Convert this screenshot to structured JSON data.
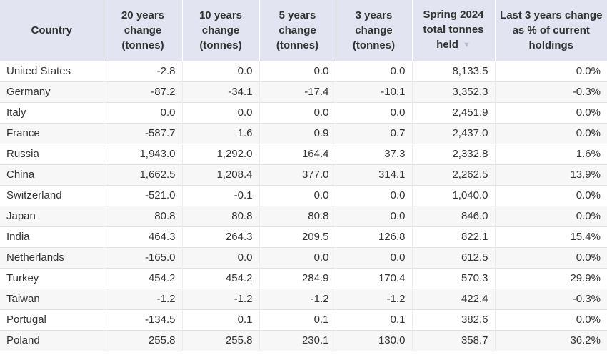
{
  "chart_data": {
    "type": "table",
    "columns": [
      {
        "key": "country",
        "label": "Country"
      },
      {
        "key": "change-20y",
        "label": "20 years change (tonnes)"
      },
      {
        "key": "change-10y",
        "label": "10 years change (tonnes)"
      },
      {
        "key": "change-5y",
        "label": "5 years change (tonnes)"
      },
      {
        "key": "change-3y",
        "label": "3 years change (tonnes)"
      },
      {
        "key": "total-held",
        "label": "Spring 2024 total tonnes held",
        "sorted": "desc"
      },
      {
        "key": "pct-change-3y",
        "label": "Last 3 years change as % of current holdings"
      }
    ],
    "rows": [
      [
        "United States",
        "-2.8",
        "0.0",
        "0.0",
        "0.0",
        "8,133.5",
        "0.0%"
      ],
      [
        "Germany",
        "-87.2",
        "-34.1",
        "-17.4",
        "-10.1",
        "3,352.3",
        "-0.3%"
      ],
      [
        "Italy",
        "0.0",
        "0.0",
        "0.0",
        "0.0",
        "2,451.9",
        "0.0%"
      ],
      [
        "France",
        "-587.7",
        "1.6",
        "0.9",
        "0.7",
        "2,437.0",
        "0.0%"
      ],
      [
        "Russia",
        "1,943.0",
        "1,292.0",
        "164.4",
        "37.3",
        "2,332.8",
        "1.6%"
      ],
      [
        "China",
        "1,662.5",
        "1,208.4",
        "377.0",
        "314.1",
        "2,262.5",
        "13.9%"
      ],
      [
        "Switzerland",
        "-521.0",
        "-0.1",
        "0.0",
        "0.0",
        "1,040.0",
        "0.0%"
      ],
      [
        "Japan",
        "80.8",
        "80.8",
        "80.8",
        "0.0",
        "846.0",
        "0.0%"
      ],
      [
        "India",
        "464.3",
        "264.3",
        "209.5",
        "126.8",
        "822.1",
        "15.4%"
      ],
      [
        "Netherlands",
        "-165.0",
        "0.0",
        "0.0",
        "0.0",
        "612.5",
        "0.0%"
      ],
      [
        "Turkey",
        "454.2",
        "454.2",
        "284.9",
        "170.4",
        "570.3",
        "29.9%"
      ],
      [
        "Taiwan",
        "-1.2",
        "-1.2",
        "-1.2",
        "-1.2",
        "422.4",
        "-0.3%"
      ],
      [
        "Portugal",
        "-134.5",
        "0.1",
        "0.1",
        "0.1",
        "382.6",
        "0.0%"
      ],
      [
        "Poland",
        "255.8",
        "255.8",
        "230.1",
        "130.0",
        "358.7",
        "36.2%"
      ]
    ],
    "sort": {
      "column": "Spring 2024 total tonnes held",
      "direction": "desc",
      "icon": "▼"
    }
  },
  "colors": {
    "header_bg": "#e2e5f1",
    "header_text": "#333333",
    "row_stripe": "#f7f7f8",
    "border": "#e2e2e2",
    "text": "#333333",
    "sort_icon": "#b4b8c8"
  }
}
